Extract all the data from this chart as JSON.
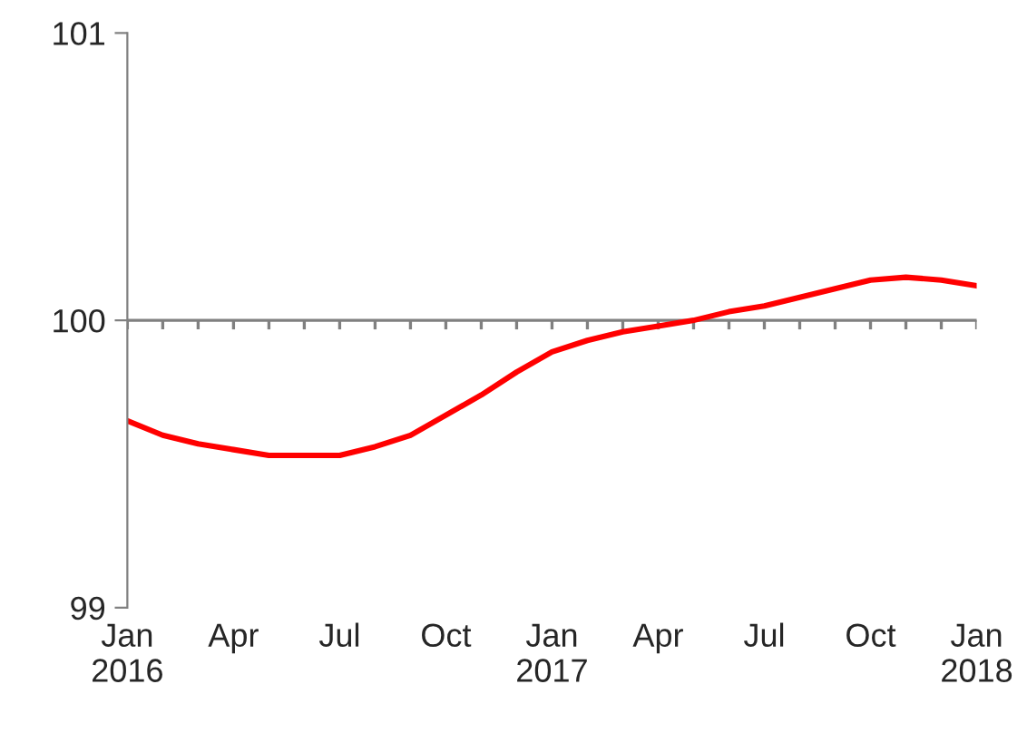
{
  "chart_data": {
    "type": "line",
    "categories": [
      "Jan\n2016",
      null,
      null,
      "Apr",
      null,
      null,
      "Jul",
      null,
      null,
      "Oct",
      null,
      null,
      "Jan\n2017",
      null,
      null,
      "Apr",
      null,
      null,
      "Jul",
      null,
      null,
      "Oct",
      null,
      null,
      "Jan\n2018"
    ],
    "series": [
      {
        "color": "#ff0000",
        "values": [
          99.65,
          99.6,
          99.57,
          99.55,
          99.53,
          99.53,
          99.53,
          99.56,
          99.6,
          99.67,
          99.74,
          99.82,
          99.89,
          99.93,
          99.96,
          99.98,
          100.0,
          100.03,
          100.05,
          100.08,
          100.11,
          100.14,
          100.15,
          100.14,
          100.12
        ]
      }
    ],
    "ylim": [
      99,
      101
    ],
    "yticks": [
      99,
      100,
      101
    ],
    "grid": false,
    "ref_lines": [
      {
        "axis": "y",
        "value": 100,
        "color": "#808080"
      }
    ],
    "legend": false,
    "marker": "none",
    "line_style": "solid"
  }
}
